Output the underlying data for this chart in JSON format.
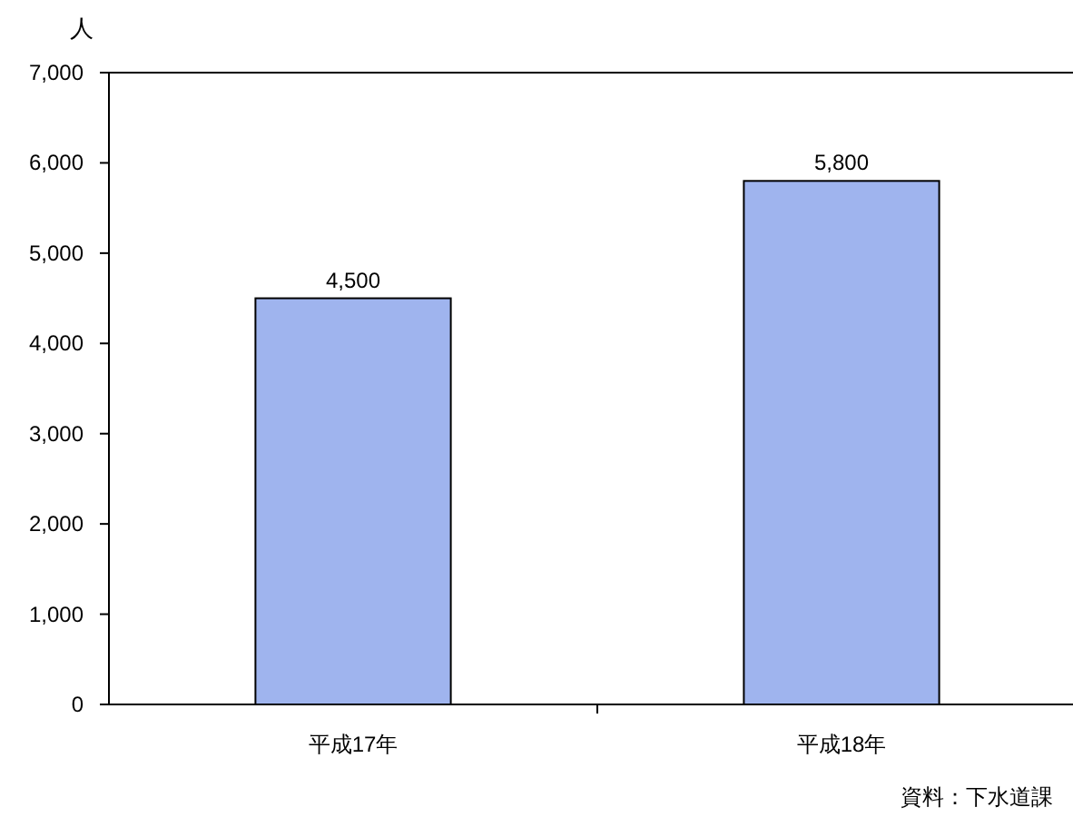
{
  "chart_data": {
    "type": "bar",
    "ylabel": "人",
    "categories": [
      "平成17年",
      "平成18年"
    ],
    "values": [
      4500,
      5800
    ],
    "color": "#9fb4ee",
    "ylim": [
      0,
      7000
    ],
    "yticks": [
      {
        "value": 0,
        "label": "0"
      },
      {
        "value": 1000,
        "label": "1,000"
      },
      {
        "value": 2000,
        "label": "2,000"
      },
      {
        "value": 3000,
        "label": "3,000"
      },
      {
        "value": 4000,
        "label": "4,000"
      },
      {
        "value": 5000,
        "label": "5,000"
      },
      {
        "value": 6000,
        "label": "6,000"
      },
      {
        "value": 7000,
        "label": "7,000"
      }
    ],
    "data_labels": true,
    "value_labels": [
      "4,500",
      "5,800"
    ],
    "annotations": [
      "資料：下水道課"
    ]
  }
}
